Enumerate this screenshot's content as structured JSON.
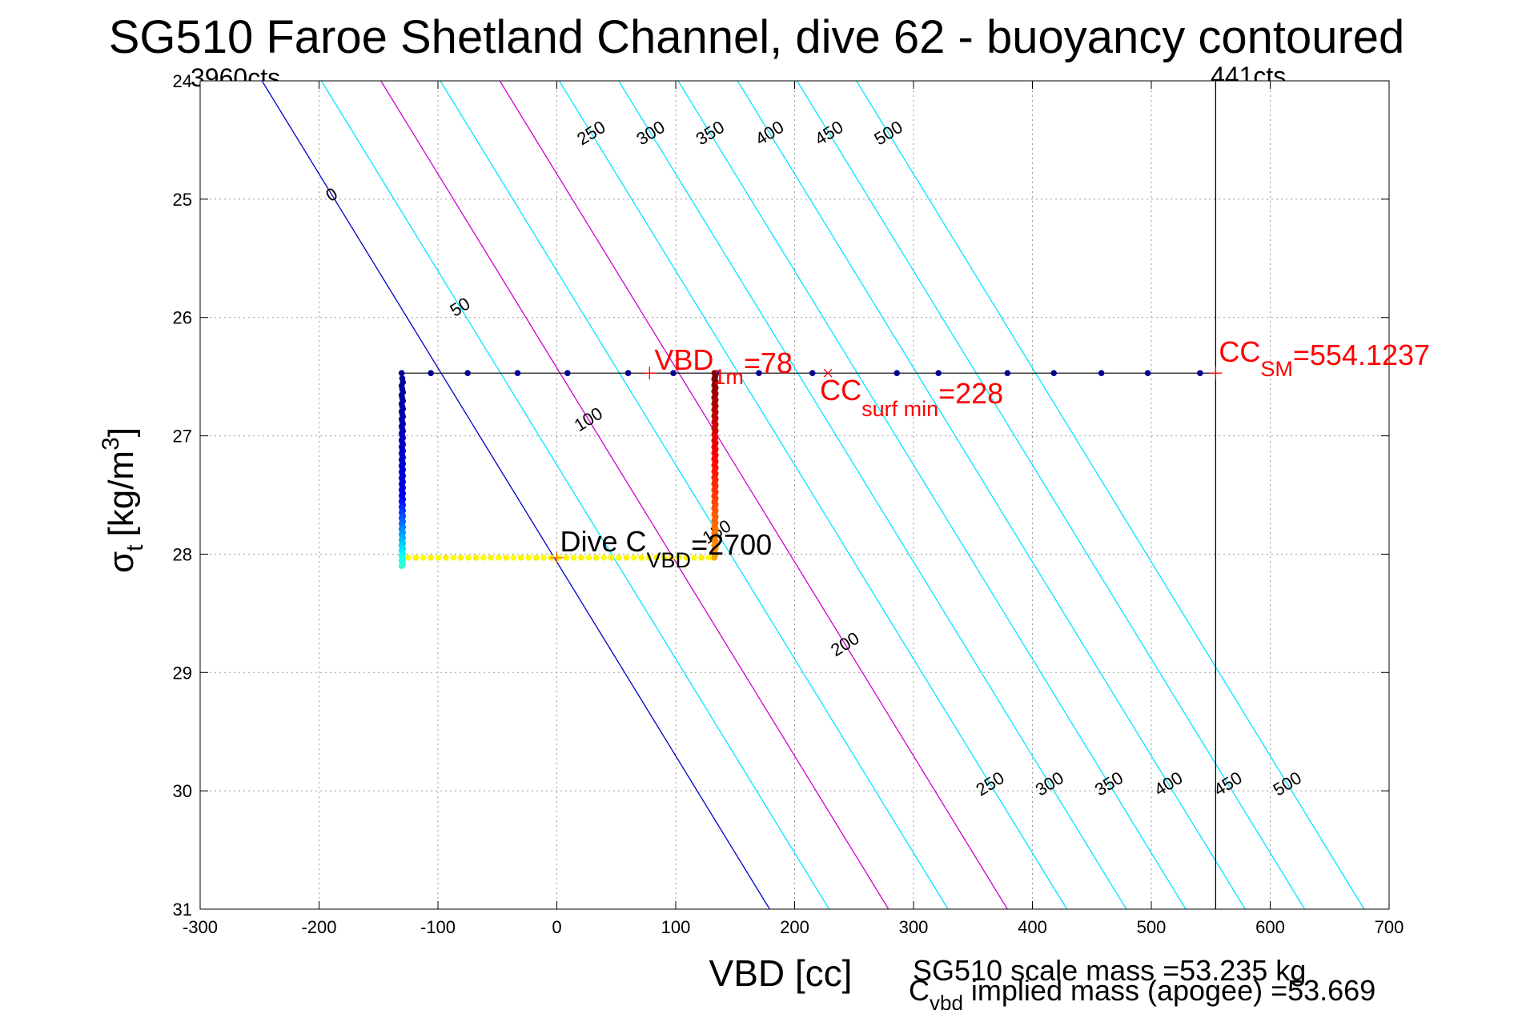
{
  "chart_data": {
    "type": "scatter",
    "title": "SG510 Faroe Shetland Channel, dive 62 - buoyancy contoured",
    "xlabel": "VBD [cc]",
    "ylabel_main": "σ",
    "ylabel_sub": "t",
    "ylabel_units": "[kg/m",
    "ylabel_units_sup": "3",
    "ylabel_units_close": "]",
    "xlim": [
      -300,
      700
    ],
    "ylim": [
      24,
      31
    ],
    "y_reversed": true,
    "grid": true,
    "xticks": [
      -300,
      -200,
      -100,
      0,
      100,
      200,
      300,
      400,
      500,
      600,
      700
    ],
    "yticks": [
      24,
      25,
      26,
      27,
      28,
      29,
      30,
      31
    ],
    "corner_labels": {
      "left": "3960cts",
      "right": "441cts"
    },
    "max_vbd_line": 554.1237,
    "contour_slope_cc_per_sigma": 61,
    "contours": [
      {
        "level": 0,
        "x_at_24": -248,
        "color": "#0000cc",
        "label": "0"
      },
      {
        "level": 50,
        "x_at_24": -198,
        "color": "#00e5ff",
        "label": "50"
      },
      {
        "level": 100,
        "x_at_24": -148,
        "color": "#d000d0",
        "label": "100"
      },
      {
        "level": 150,
        "x_at_24": -98,
        "color": "#00e5ff",
        "label": "150"
      },
      {
        "level": 200,
        "x_at_24": -48,
        "color": "#d000d0",
        "label": "200"
      },
      {
        "level": 250,
        "x_at_24": 2,
        "color": "#00e5ff",
        "label": "250"
      },
      {
        "level": 300,
        "x_at_24": 52,
        "color": "#00e5ff",
        "label": "300"
      },
      {
        "level": 350,
        "x_at_24": 102,
        "color": "#00e5ff",
        "label": "350"
      },
      {
        "level": 400,
        "x_at_24": 152,
        "color": "#00e5ff",
        "label": "400"
      },
      {
        "level": 450,
        "x_at_24": 202,
        "color": "#00e5ff",
        "label": "450"
      },
      {
        "level": 500,
        "x_at_24": 252,
        "color": "#00e5ff",
        "label": "500"
      }
    ],
    "top_row_points_x": [
      -106,
      -75,
      -33,
      9,
      60,
      98,
      134,
      170,
      215,
      286,
      321,
      379,
      418,
      458,
      497,
      541
    ],
    "top_row_sigma": 26.47,
    "left_column": {
      "x": -130,
      "sigma_start": 26.47,
      "sigma_end": 28.1
    },
    "right_column": {
      "x": 133,
      "sigma_start": 26.47,
      "sigma_end": 28.03
    },
    "bottom_row": {
      "sigma": 28.03,
      "x_start": -125,
      "x_end": 128
    },
    "annotations": {
      "vbd1m": {
        "text": "VBD",
        "sub": "1m",
        "tail": "=78",
        "x": 78,
        "sigma": 26.47
      },
      "ccsurf": {
        "text": "CC",
        "sub": "surf min",
        "tail": "=228",
        "x": 228,
        "sigma": 26.47
      },
      "ccsm": {
        "text": "CC",
        "sub": "SM",
        "tail": "=554.1237",
        "x": 554.1237,
        "sigma": 26.47
      },
      "divecvbd": {
        "text": "Dive C",
        "sub": "VBD",
        "tail": "=2700",
        "x": 0,
        "sigma": 28.03
      }
    },
    "footer": {
      "scale_mass": "SG510 scale mass =53.235 kg",
      "implied_main": "C",
      "implied_sub": "vbd",
      "implied_tail": " implied mass (apogee) =53.669"
    }
  }
}
